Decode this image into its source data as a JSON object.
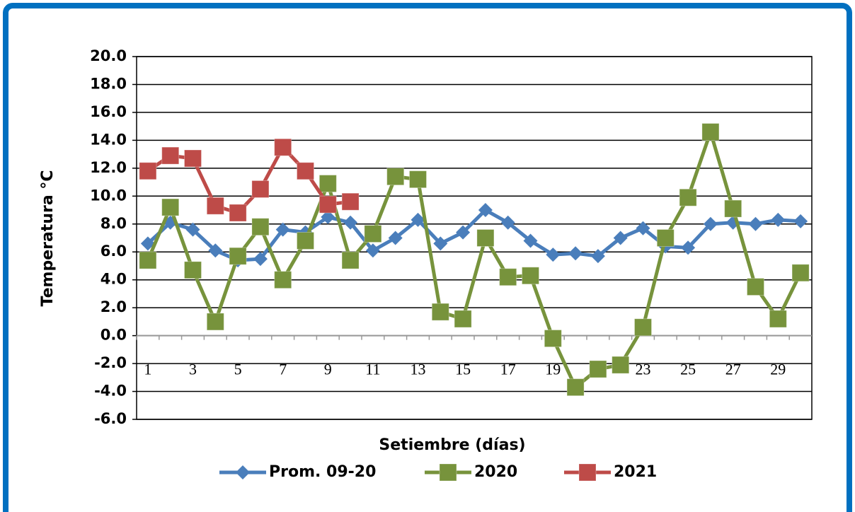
{
  "chart_data": {
    "type": "line",
    "x_label": "Setiembre (días)",
    "y_label": "Temperatura  °C",
    "categories": [
      "1",
      null,
      "3",
      null,
      "5",
      null,
      "7",
      null,
      "9",
      null,
      "11",
      null,
      "13",
      null,
      "15",
      null,
      "17",
      null,
      "19",
      null,
      "21",
      null,
      "23",
      null,
      "25",
      null,
      "27",
      null,
      "29",
      null
    ],
    "series": [
      {
        "name": "Prom. 09-20",
        "color": "#4a7ebb",
        "marker": "diamond",
        "values": [
          6.6,
          8.1,
          7.6,
          6.1,
          5.4,
          5.5,
          7.6,
          7.4,
          8.5,
          8.1,
          6.1,
          7.0,
          8.3,
          6.6,
          7.4,
          9.0,
          8.1,
          6.8,
          5.8,
          5.9,
          5.7,
          7.0,
          7.7,
          6.4,
          6.3,
          8.0,
          8.1,
          8.0,
          8.3,
          8.2
        ]
      },
      {
        "name": "2020",
        "color": "#77933c",
        "marker": "square",
        "values": [
          5.4,
          9.2,
          4.7,
          1.0,
          5.7,
          7.8,
          4.0,
          6.8,
          10.9,
          5.4,
          7.3,
          11.4,
          11.2,
          1.7,
          1.2,
          7.0,
          4.2,
          4.3,
          -0.2,
          -3.7,
          -2.4,
          -2.1,
          0.6,
          7.0,
          9.9,
          14.6,
          9.1,
          3.5,
          1.2,
          4.5
        ]
      },
      {
        "name": "2021",
        "color": "#be4b48",
        "marker": "square",
        "values": [
          11.8,
          12.9,
          12.7,
          9.3,
          8.8,
          10.5,
          13.5,
          11.8,
          9.4,
          9.6,
          null,
          null,
          null,
          null,
          null,
          null,
          null,
          null,
          null,
          null,
          null,
          null,
          null,
          null,
          null,
          null,
          null,
          null,
          null,
          null
        ]
      }
    ],
    "ylim": [
      -6,
      20
    ],
    "yticks": [
      {
        "value": -6,
        "label": "-6.0"
      },
      {
        "value": -4,
        "label": "-4.0"
      },
      {
        "value": -2,
        "label": "-2.0"
      },
      {
        "value": 0,
        "label": "0.0"
      },
      {
        "value": 2,
        "label": "2.0"
      },
      {
        "value": 4,
        "label": "4.0"
      },
      {
        "value": 6,
        "label": "6.0"
      },
      {
        "value": 8,
        "label": "8.0"
      },
      {
        "value": 10,
        "label": "10.0"
      },
      {
        "value": 12,
        "label": "12.0"
      },
      {
        "value": 14,
        "label": "14.0"
      },
      {
        "value": 16,
        "label": "16.0"
      },
      {
        "value": 18,
        "label": "18.0"
      },
      {
        "value": 20,
        "label": "20.0"
      }
    ],
    "grid": true,
    "legend": "bottom"
  }
}
